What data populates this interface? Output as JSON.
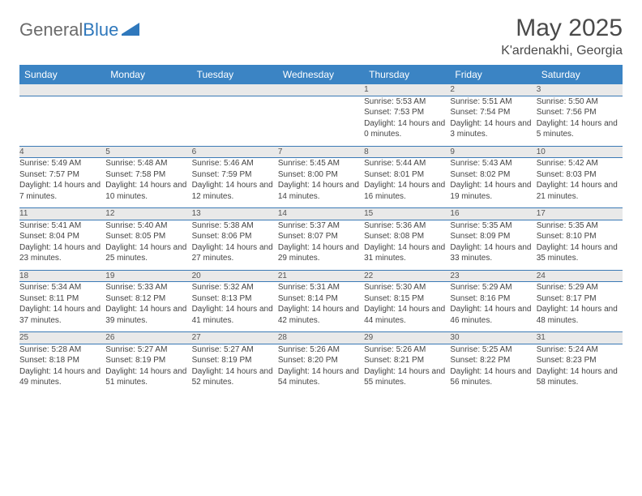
{
  "logo": {
    "part1": "General",
    "part2": "Blue"
  },
  "title": "May 2025",
  "subtitle": "K'ardenakhi, Georgia",
  "header_bg": "#3b84c4",
  "header_text_color": "#ffffff",
  "daynum_bg": "#e9e9e9",
  "rule_color": "#3b7ab5",
  "days_of_week": [
    "Sunday",
    "Monday",
    "Tuesday",
    "Wednesday",
    "Thursday",
    "Friday",
    "Saturday"
  ],
  "weeks": [
    {
      "nums": [
        "",
        "",
        "",
        "",
        "1",
        "2",
        "3"
      ],
      "cells": [
        null,
        null,
        null,
        null,
        {
          "sunrise": "5:53 AM",
          "sunset": "7:53 PM",
          "dl": "14 hours and 0 minutes."
        },
        {
          "sunrise": "5:51 AM",
          "sunset": "7:54 PM",
          "dl": "14 hours and 3 minutes."
        },
        {
          "sunrise": "5:50 AM",
          "sunset": "7:56 PM",
          "dl": "14 hours and 5 minutes."
        }
      ]
    },
    {
      "nums": [
        "4",
        "5",
        "6",
        "7",
        "8",
        "9",
        "10"
      ],
      "cells": [
        {
          "sunrise": "5:49 AM",
          "sunset": "7:57 PM",
          "dl": "14 hours and 7 minutes."
        },
        {
          "sunrise": "5:48 AM",
          "sunset": "7:58 PM",
          "dl": "14 hours and 10 minutes."
        },
        {
          "sunrise": "5:46 AM",
          "sunset": "7:59 PM",
          "dl": "14 hours and 12 minutes."
        },
        {
          "sunrise": "5:45 AM",
          "sunset": "8:00 PM",
          "dl": "14 hours and 14 minutes."
        },
        {
          "sunrise": "5:44 AM",
          "sunset": "8:01 PM",
          "dl": "14 hours and 16 minutes."
        },
        {
          "sunrise": "5:43 AM",
          "sunset": "8:02 PM",
          "dl": "14 hours and 19 minutes."
        },
        {
          "sunrise": "5:42 AM",
          "sunset": "8:03 PM",
          "dl": "14 hours and 21 minutes."
        }
      ]
    },
    {
      "nums": [
        "11",
        "12",
        "13",
        "14",
        "15",
        "16",
        "17"
      ],
      "cells": [
        {
          "sunrise": "5:41 AM",
          "sunset": "8:04 PM",
          "dl": "14 hours and 23 minutes."
        },
        {
          "sunrise": "5:40 AM",
          "sunset": "8:05 PM",
          "dl": "14 hours and 25 minutes."
        },
        {
          "sunrise": "5:38 AM",
          "sunset": "8:06 PM",
          "dl": "14 hours and 27 minutes."
        },
        {
          "sunrise": "5:37 AM",
          "sunset": "8:07 PM",
          "dl": "14 hours and 29 minutes."
        },
        {
          "sunrise": "5:36 AM",
          "sunset": "8:08 PM",
          "dl": "14 hours and 31 minutes."
        },
        {
          "sunrise": "5:35 AM",
          "sunset": "8:09 PM",
          "dl": "14 hours and 33 minutes."
        },
        {
          "sunrise": "5:35 AM",
          "sunset": "8:10 PM",
          "dl": "14 hours and 35 minutes."
        }
      ]
    },
    {
      "nums": [
        "18",
        "19",
        "20",
        "21",
        "22",
        "23",
        "24"
      ],
      "cells": [
        {
          "sunrise": "5:34 AM",
          "sunset": "8:11 PM",
          "dl": "14 hours and 37 minutes."
        },
        {
          "sunrise": "5:33 AM",
          "sunset": "8:12 PM",
          "dl": "14 hours and 39 minutes."
        },
        {
          "sunrise": "5:32 AM",
          "sunset": "8:13 PM",
          "dl": "14 hours and 41 minutes."
        },
        {
          "sunrise": "5:31 AM",
          "sunset": "8:14 PM",
          "dl": "14 hours and 42 minutes."
        },
        {
          "sunrise": "5:30 AM",
          "sunset": "8:15 PM",
          "dl": "14 hours and 44 minutes."
        },
        {
          "sunrise": "5:29 AM",
          "sunset": "8:16 PM",
          "dl": "14 hours and 46 minutes."
        },
        {
          "sunrise": "5:29 AM",
          "sunset": "8:17 PM",
          "dl": "14 hours and 48 minutes."
        }
      ]
    },
    {
      "nums": [
        "25",
        "26",
        "27",
        "28",
        "29",
        "30",
        "31"
      ],
      "cells": [
        {
          "sunrise": "5:28 AM",
          "sunset": "8:18 PM",
          "dl": "14 hours and 49 minutes."
        },
        {
          "sunrise": "5:27 AM",
          "sunset": "8:19 PM",
          "dl": "14 hours and 51 minutes."
        },
        {
          "sunrise": "5:27 AM",
          "sunset": "8:19 PM",
          "dl": "14 hours and 52 minutes."
        },
        {
          "sunrise": "5:26 AM",
          "sunset": "8:20 PM",
          "dl": "14 hours and 54 minutes."
        },
        {
          "sunrise": "5:26 AM",
          "sunset": "8:21 PM",
          "dl": "14 hours and 55 minutes."
        },
        {
          "sunrise": "5:25 AM",
          "sunset": "8:22 PM",
          "dl": "14 hours and 56 minutes."
        },
        {
          "sunrise": "5:24 AM",
          "sunset": "8:23 PM",
          "dl": "14 hours and 58 minutes."
        }
      ]
    }
  ],
  "labels": {
    "sunrise": "Sunrise: ",
    "sunset": "Sunset: ",
    "daylight": "Daylight: "
  }
}
